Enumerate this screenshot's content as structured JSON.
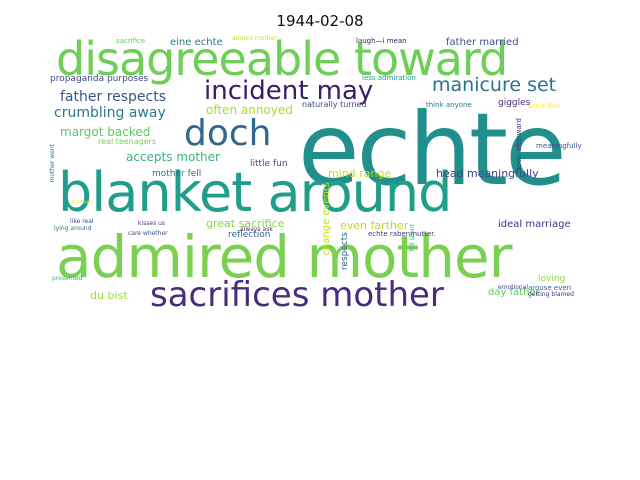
{
  "title": "1944-02-08",
  "words": [
    {
      "text": "echte",
      "color": "#21908d"
    },
    {
      "text": "blanket around",
      "color": "#1f9e89"
    },
    {
      "text": "admired mother",
      "color": "#7ad151"
    },
    {
      "text": "disagreeable toward",
      "color": "#6ece58"
    },
    {
      "text": "sacrifices mother",
      "color": "#472d7b"
    },
    {
      "text": "doch",
      "color": "#31688e"
    },
    {
      "text": "incident may",
      "color": "#3b1c67"
    },
    {
      "text": "manicure set",
      "color": "#2c728e"
    },
    {
      "text": "father respects",
      "color": "#3b528b"
    },
    {
      "text": "crumbling away",
      "color": "#2a788e"
    },
    {
      "text": "often annoyed",
      "color": "#a5db36"
    },
    {
      "text": "margot backed",
      "color": "#5ec962"
    },
    {
      "text": "accepts mother",
      "color": "#35b779"
    },
    {
      "text": "mind range",
      "color": "#c2df23"
    },
    {
      "text": "head meaningfully",
      "color": "#414487"
    },
    {
      "text": "great sacrifice",
      "color": "#86d549"
    },
    {
      "text": "even farther",
      "color": "#b5de2b"
    },
    {
      "text": "ideal marriage",
      "color": "#46327e"
    },
    {
      "text": "du bist",
      "color": "#a0da39"
    },
    {
      "text": "day father",
      "color": "#5ec962"
    },
    {
      "text": "reflection",
      "color": "#31688e"
    },
    {
      "text": "little fun",
      "color": "#3e4a89"
    },
    {
      "text": "mother fell",
      "color": "#2c728e"
    },
    {
      "text": "father married",
      "color": "#3b528b"
    },
    {
      "text": "eine echte",
      "color": "#2a788e"
    },
    {
      "text": "propaganda purposes",
      "color": "#3e4a89"
    },
    {
      "text": "real teenagers",
      "color": "#7ad151"
    },
    {
      "text": "change events",
      "color": "#c2df23"
    },
    {
      "text": "respects",
      "color": "#31688e"
    },
    {
      "text": "loving",
      "color": "#8fd744"
    },
    {
      "text": "giggles",
      "color": "#482878"
    },
    {
      "text": "naturally turned",
      "color": "#3e4a89"
    },
    {
      "text": "think anyone",
      "color": "#2a788e"
    },
    {
      "text": "less admiration",
      "color": "#1f9e89"
    },
    {
      "text": "laugh—i mean",
      "color": "#3b1c67"
    },
    {
      "text": "admire mother",
      "color": "#d2e21b"
    },
    {
      "text": "sacrifice",
      "color": "#5ec962"
    },
    {
      "text": "soon afterward",
      "color": "#46327e"
    },
    {
      "text": "meaningfully",
      "color": "#3b528b"
    },
    {
      "text": "entire floor",
      "color": "#fde725"
    },
    {
      "text": "emotional",
      "color": "#3e4a89"
    },
    {
      "text": "arouse even",
      "color": "#31688e"
    },
    {
      "text": "getting blamed",
      "color": "#46327e"
    },
    {
      "text": "echte rabenmutter.",
      "color": "#443a83"
    },
    {
      "text": "fell silent",
      "color": "#35b779"
    },
    {
      "text": "always ask",
      "color": "#472d7b"
    },
    {
      "text": "care whether",
      "color": "#3b528b"
    },
    {
      "text": "kisses us",
      "color": "#443a83"
    },
    {
      "text": "like real",
      "color": "#3e4a89"
    },
    {
      "text": "lying around",
      "color": "#2c728e"
    },
    {
      "text": "presented",
      "color": "#35b779"
    },
    {
      "text": "further",
      "color": "#fde725"
    },
    {
      "text": "mother went",
      "color": "#2a788e"
    }
  ]
}
